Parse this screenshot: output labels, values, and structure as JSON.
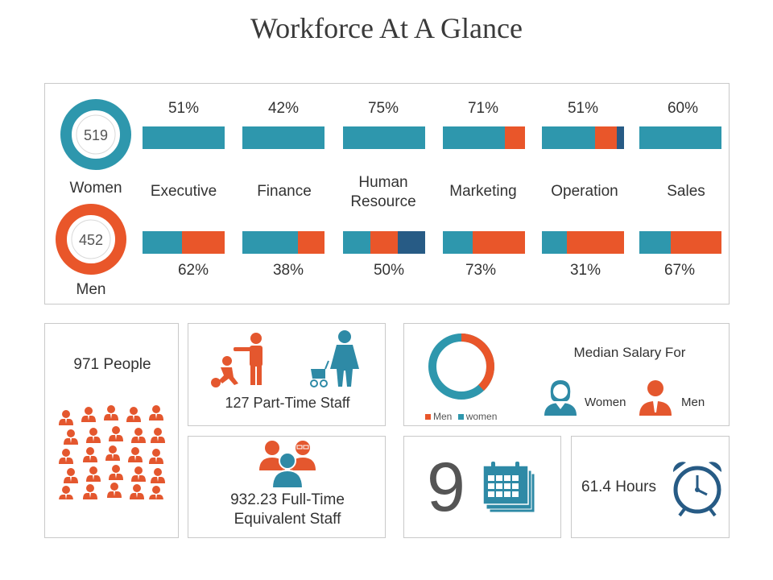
{
  "title": "Workforce At A Glance",
  "colors": {
    "women": "#2e97ad",
    "men": "#e9562a",
    "dark": "#275b85",
    "icon_blue": "#2e8aa6",
    "icon_orange": "#e4572e",
    "border": "#c9c9c9"
  },
  "summary": {
    "women_count": "519",
    "women_label": "Women",
    "men_count": "452",
    "men_label": "Men"
  },
  "departments": [
    {
      "name": "Executive",
      "top_pct": "51%",
      "bottom_pct": "62%",
      "top_bar": [
        {
          "color": "women",
          "value": 1.0
        }
      ],
      "bottom_bar": [
        {
          "color": "women",
          "value": 0.48
        },
        {
          "color": "men",
          "value": 0.52
        }
      ]
    },
    {
      "name": "Finance",
      "top_pct": "42%",
      "bottom_pct": "38%",
      "top_bar": [
        {
          "color": "women",
          "value": 1.0
        }
      ],
      "bottom_bar": [
        {
          "color": "women",
          "value": 0.68
        },
        {
          "color": "men",
          "value": 0.32
        }
      ]
    },
    {
      "name": "Human Resource",
      "top_pct": "75%",
      "bottom_pct": "50%",
      "top_bar": [
        {
          "color": "women",
          "value": 1.0
        }
      ],
      "bottom_bar": [
        {
          "color": "women",
          "value": 0.33
        },
        {
          "color": "men",
          "value": 0.34
        },
        {
          "color": "dark",
          "value": 0.33
        }
      ]
    },
    {
      "name": "Marketing",
      "top_pct": "71%",
      "bottom_pct": "73%",
      "top_bar": [
        {
          "color": "women",
          "value": 0.75
        },
        {
          "color": "men",
          "value": 0.25
        }
      ],
      "bottom_bar": [
        {
          "color": "women",
          "value": 0.36
        },
        {
          "color": "men",
          "value": 0.64
        }
      ]
    },
    {
      "name": "Operation",
      "top_pct": "51%",
      "bottom_pct": "31%",
      "top_bar": [
        {
          "color": "women",
          "value": 0.65
        },
        {
          "color": "men",
          "value": 0.26
        },
        {
          "color": "dark",
          "value": 0.09
        }
      ],
      "bottom_bar": [
        {
          "color": "women",
          "value": 0.3
        },
        {
          "color": "men",
          "value": 0.7
        }
      ]
    },
    {
      "name": "Sales",
      "top_pct": "60%",
      "bottom_pct": "67%",
      "top_bar": [
        {
          "color": "women",
          "value": 1.0
        }
      ],
      "bottom_bar": [
        {
          "color": "women",
          "value": 0.38
        },
        {
          "color": "men",
          "value": 0.62
        }
      ]
    }
  ],
  "people": {
    "label": "971 People"
  },
  "part_time": {
    "label": "127 Part-Time Staff"
  },
  "full_time": {
    "line1": "932.23 Full-Time",
    "line2": "Equivalent Staff"
  },
  "salary": {
    "title": "Median Salary For",
    "women_label": "Women",
    "men_label": "Men",
    "legend_men": "Men",
    "legend_women": "women",
    "men_share": 0.38
  },
  "days": {
    "value": "9"
  },
  "hours": {
    "label": "61.4 Hours"
  }
}
